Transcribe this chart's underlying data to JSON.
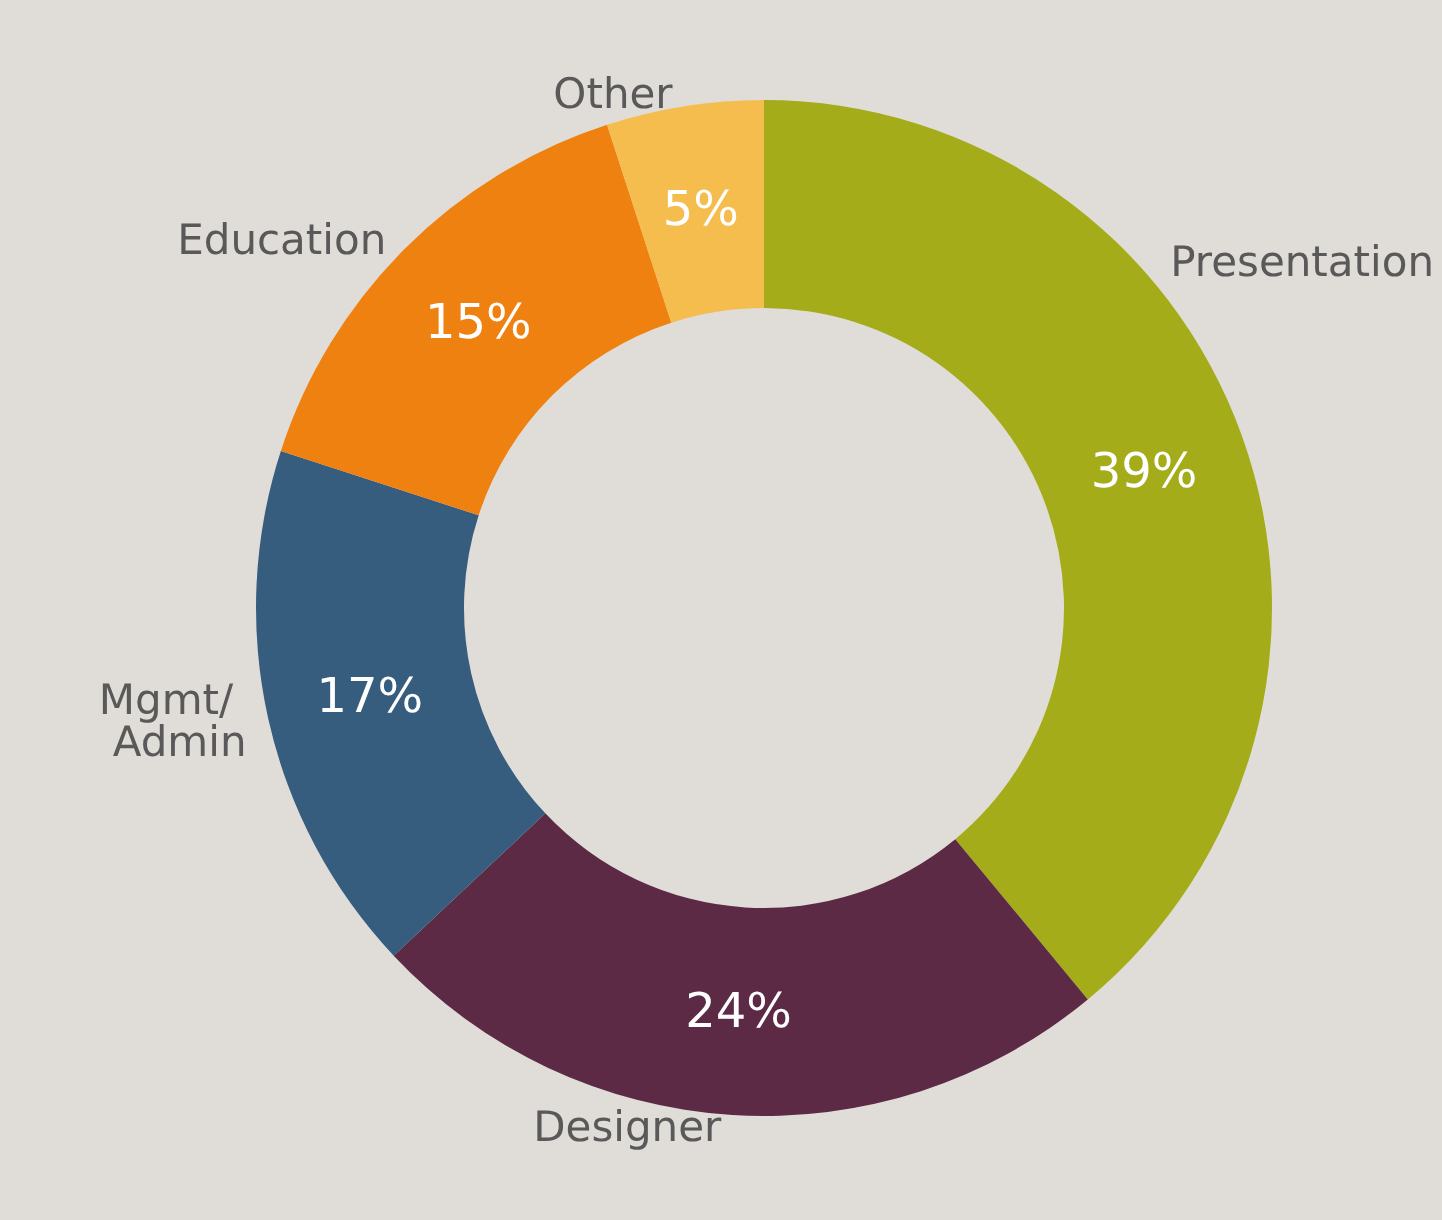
{
  "chart_data": {
    "type": "donut",
    "categories": [
      "Presentation",
      "Designer",
      "Mgmt/ Admin",
      "Education",
      "Other"
    ],
    "values": [
      39,
      24,
      17,
      15,
      5
    ],
    "colors": [
      "#a5ac1a",
      "#5c2a44",
      "#365c7e",
      "#ef8110",
      "#f4bd4e"
    ],
    "value_labels": [
      "39%",
      "24%",
      "17%",
      "15%",
      "5%"
    ],
    "legend": false
  }
}
